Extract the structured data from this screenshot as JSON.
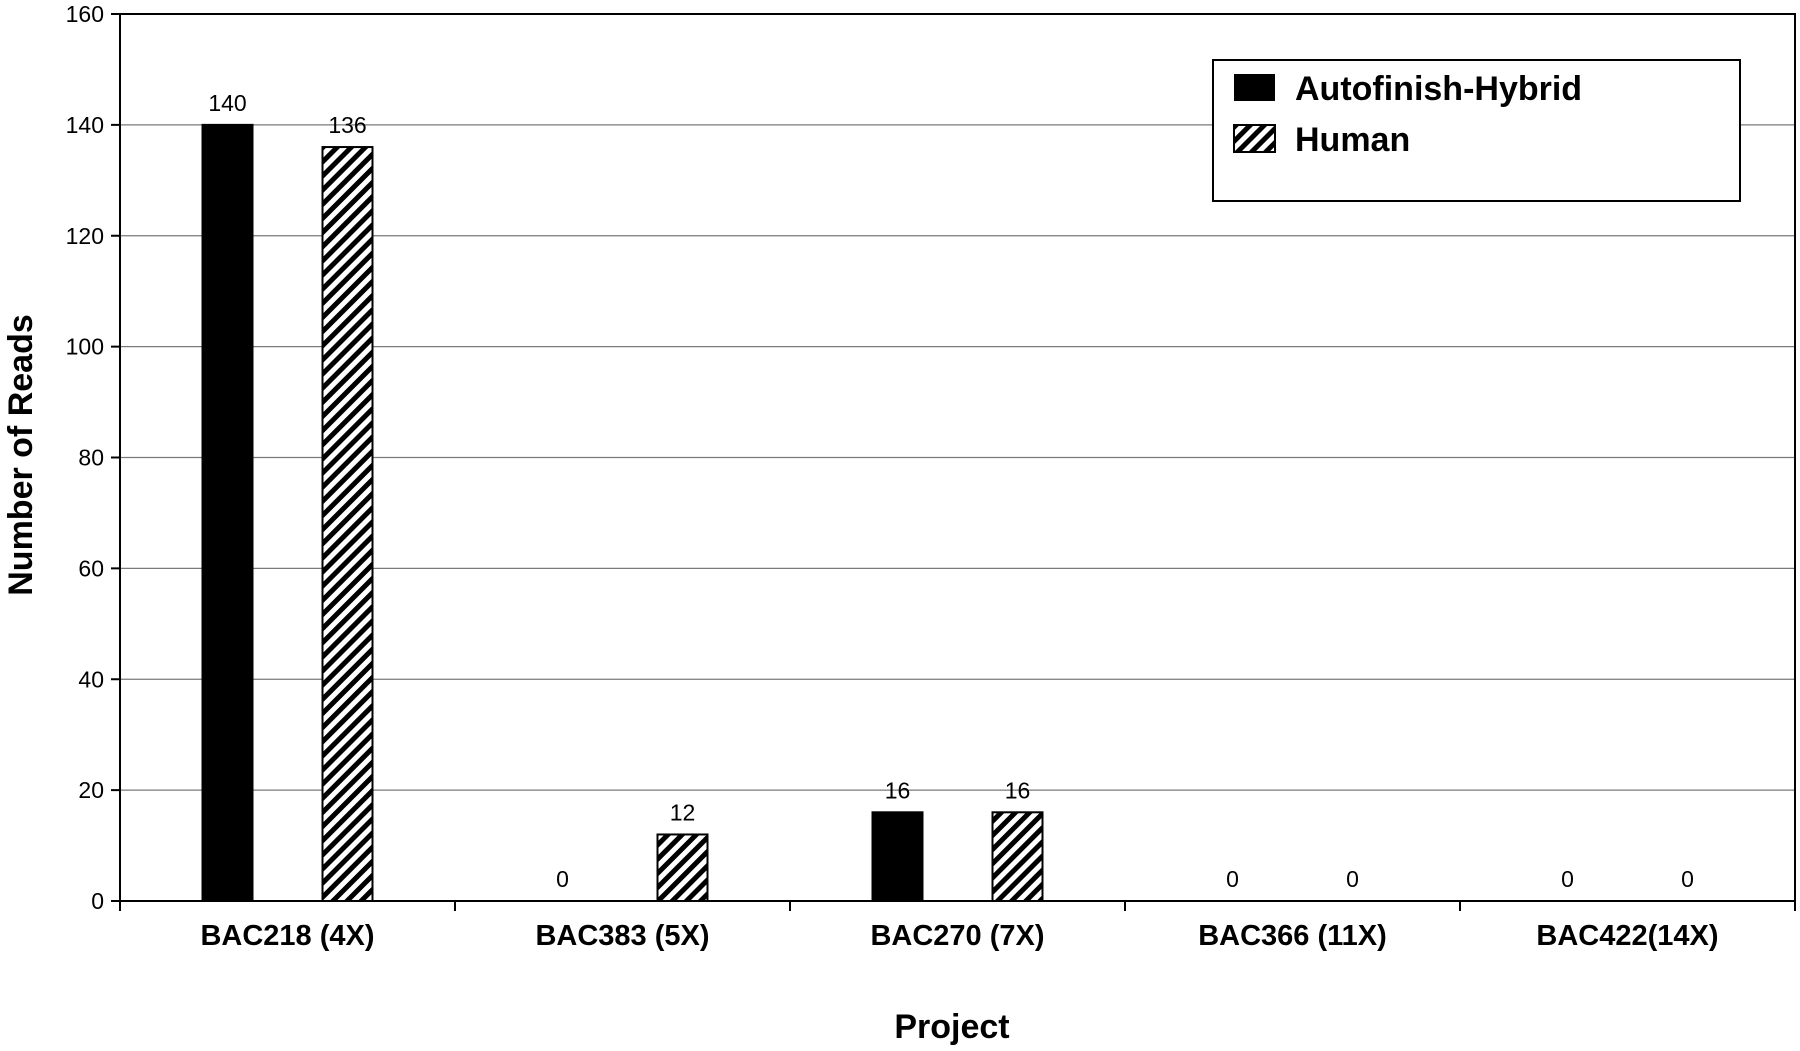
{
  "chart_data": {
    "type": "bar",
    "categories": [
      "BAC218 (4X)",
      "BAC383 (5X)",
      "BAC270 (7X)",
      "BAC366 (11X)",
      "BAC422(14X)"
    ],
    "series": [
      {
        "name": "Autofinish-Hybrid",
        "values": [
          140,
          0,
          16,
          0,
          0
        ],
        "color": "#000000",
        "pattern": "solid"
      },
      {
        "name": "Human",
        "values": [
          136,
          12,
          16,
          0,
          0
        ],
        "color": "#000000",
        "pattern": "diagonal-hatch"
      }
    ],
    "title": "",
    "xlabel": "Project",
    "ylabel": "Number of Reads",
    "ylim": [
      0,
      160
    ],
    "yticks": [
      0,
      20,
      40,
      60,
      80,
      100,
      120,
      140,
      160
    ],
    "grid": true,
    "legend_position": "top-right"
  }
}
